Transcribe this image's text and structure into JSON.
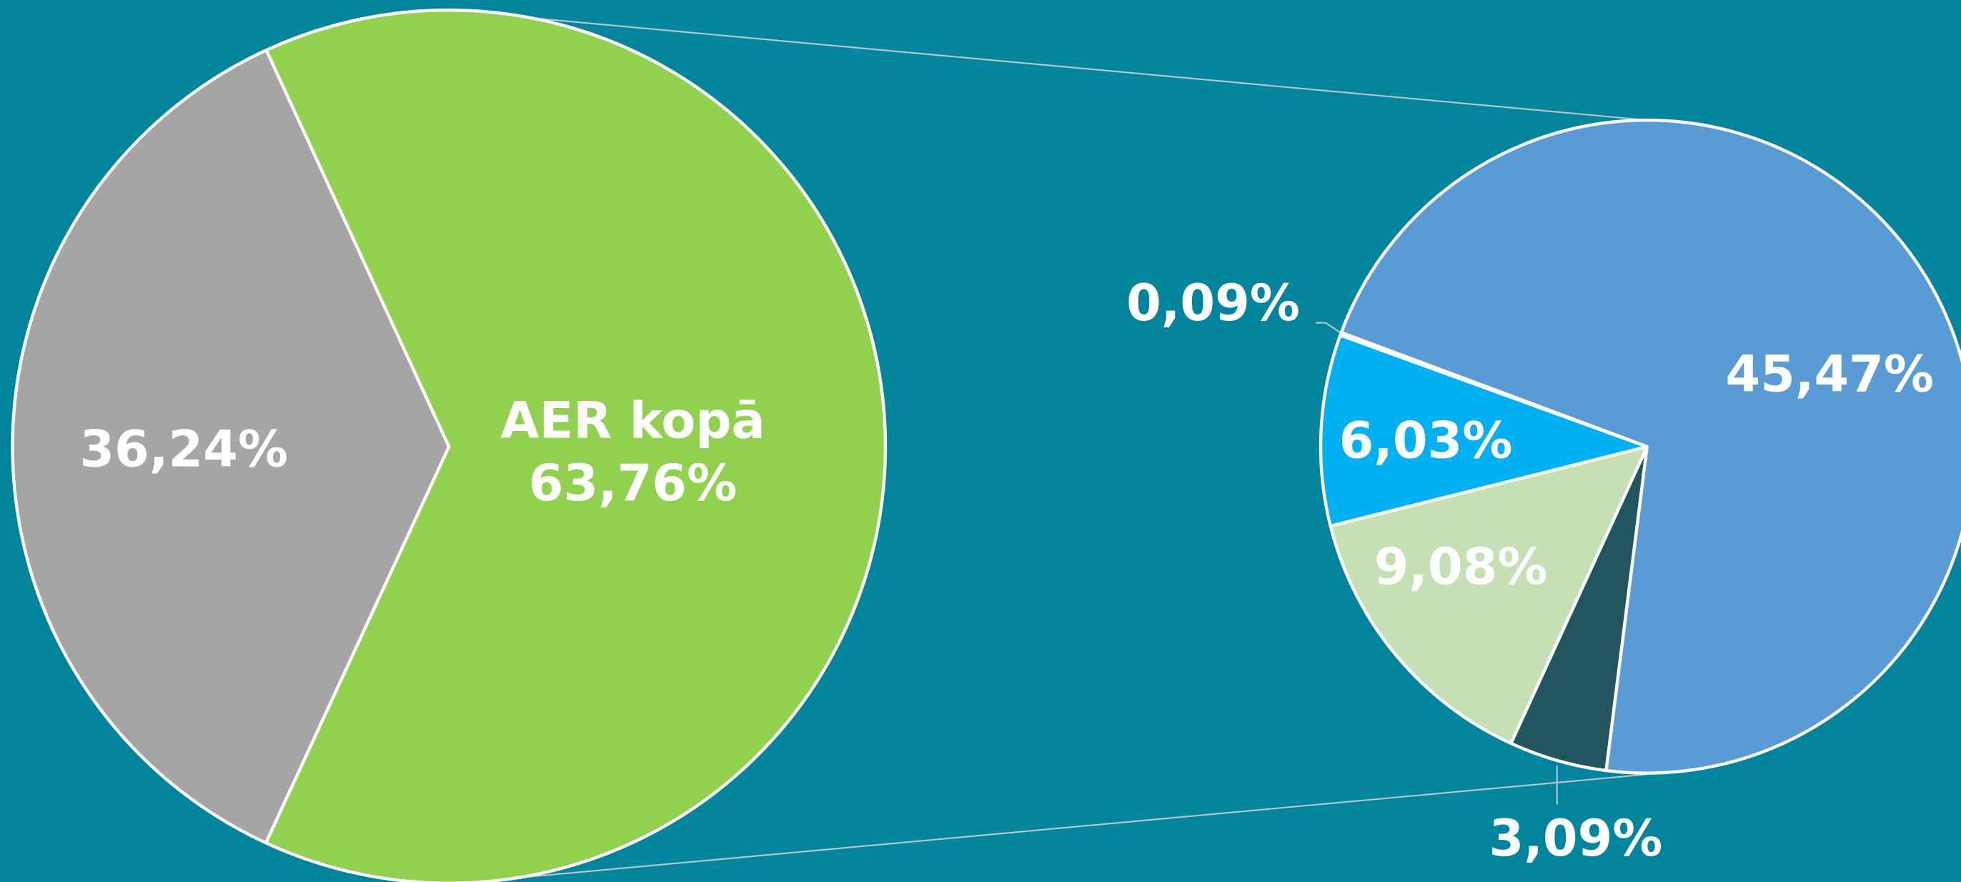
{
  "chart_data": [
    {
      "type": "pie",
      "categories": [
        null,
        "AER kopā"
      ],
      "values": [
        36.24,
        63.76
      ],
      "value_labels": [
        "36,24%",
        "63,76%"
      ],
      "colors": [
        "#a5a5a5",
        "#92d050"
      ]
    },
    {
      "type": "pie",
      "categories": [
        null,
        null,
        null,
        null,
        null
      ],
      "values": [
        3.09,
        9.08,
        6.03,
        0.09,
        45.47
      ],
      "value_labels": [
        "3,09%",
        "9,08%",
        "6,03%",
        "0,09%",
        "45,47%"
      ],
      "colors": [
        "#22555f",
        "#c5e0b4",
        "#00b0f0",
        "#4472c4",
        "#5b9bd5"
      ]
    }
  ]
}
